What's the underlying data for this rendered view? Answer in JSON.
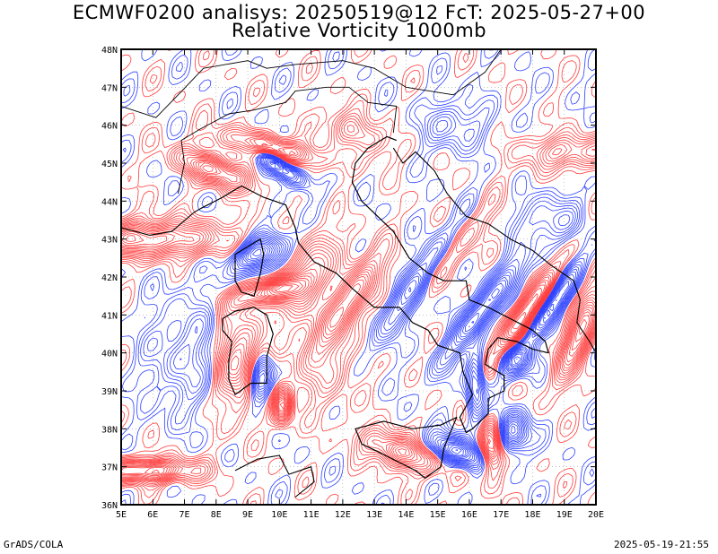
{
  "title": {
    "line1": "ECMWF0200 analisys: 20250519@12 FcT: 2025-05-27+00",
    "line2": "Relative Vorticity 1000mb"
  },
  "map": {
    "lon_range": [
      5,
      20
    ],
    "lat_range": [
      36,
      48
    ],
    "lon_ticks": [
      "5E",
      "6E",
      "7E",
      "8E",
      "9E",
      "10E",
      "11E",
      "12E",
      "13E",
      "14E",
      "15E",
      "16E",
      "17E",
      "18E",
      "19E",
      "20E"
    ],
    "lat_ticks": [
      "36N",
      "37N",
      "38N",
      "39N",
      "40N",
      "41N",
      "42N",
      "43N",
      "44N",
      "45N",
      "46N",
      "47N",
      "48N"
    ],
    "field": "Relative Vorticity",
    "level": "1000mb",
    "colors": {
      "positive_contours": "#ff3b3b",
      "negative_contours": "#2b3fff",
      "coastline": "#000000",
      "grid": "#999999"
    }
  },
  "footer": {
    "left": "GrADS/COLA",
    "right": "2025-05-19-21:55"
  }
}
